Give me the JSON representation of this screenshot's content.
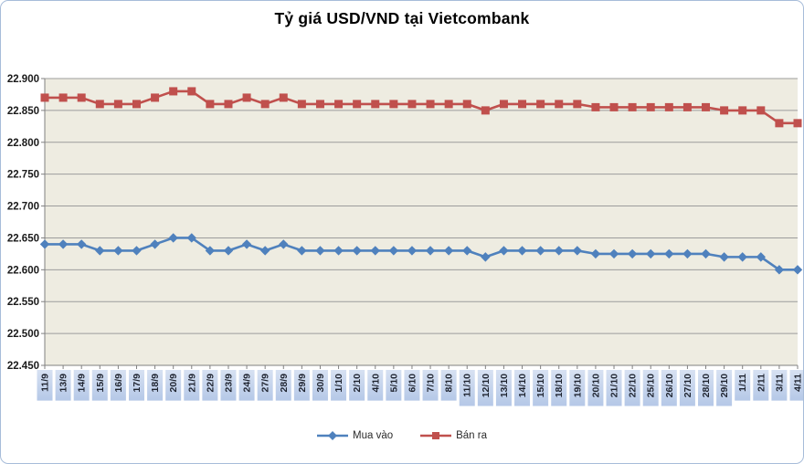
{
  "title": "Tỷ giá USD/VND tại Vietcombank",
  "colors": {
    "buy_series": "#4F81BD",
    "sell_series": "#C0504D",
    "plot_bg": "#EEECE1",
    "gridline": "#9C9C9C",
    "axis_line": "#808080",
    "frame_border": "#A7BCD9",
    "xlabel_bg_top": "#D7E1F2",
    "xlabel_bg_bottom": "#B5C8E7",
    "xlabel_text": "#1f2430",
    "ylabel_text": "#1a1a1a"
  },
  "chart_data": {
    "type": "line",
    "title": "Tỷ giá USD/VND tại Vietcombank",
    "xlabel": "",
    "ylabel": "",
    "ylim": [
      22.45,
      22.9
    ],
    "ytick_step": 0.05,
    "ytick_labels": [
      "22.450",
      "22.500",
      "22.550",
      "22.600",
      "22.650",
      "22.700",
      "22.750",
      "22.800",
      "22.850",
      "22.900"
    ],
    "grid": true,
    "legend_position": "bottom",
    "categories": [
      "11/9",
      "13/9",
      "14/9",
      "15/9",
      "16/9",
      "17/9",
      "18/9",
      "20/9",
      "21/9",
      "22/9",
      "23/9",
      "24/9",
      "27/9",
      "28/9",
      "29/9",
      "30/9",
      "1/10",
      "2/10",
      "4/10",
      "5/10",
      "6/10",
      "7/10",
      "8/10",
      "11/10",
      "12/10",
      "13/10",
      "14/10",
      "15/10",
      "18/10",
      "19/10",
      "20/10",
      "21/10",
      "22/10",
      "25/10",
      "26/10",
      "27/10",
      "28/10",
      "29/10",
      "1/11",
      "2/11",
      "3/11",
      "4/11"
    ],
    "series": [
      {
        "name": "Mua vào",
        "marker": "diamond",
        "color": "#4F81BD",
        "values": [
          22.64,
          22.64,
          22.64,
          22.63,
          22.63,
          22.63,
          22.64,
          22.65,
          22.65,
          22.63,
          22.63,
          22.64,
          22.63,
          22.64,
          22.63,
          22.63,
          22.63,
          22.63,
          22.63,
          22.63,
          22.63,
          22.63,
          22.63,
          22.63,
          22.62,
          22.63,
          22.63,
          22.63,
          22.63,
          22.63,
          22.625,
          22.625,
          22.625,
          22.625,
          22.625,
          22.625,
          22.625,
          22.62,
          22.62,
          22.62,
          22.6,
          22.6
        ]
      },
      {
        "name": "Bán ra",
        "marker": "square",
        "color": "#C0504D",
        "values": [
          22.87,
          22.87,
          22.87,
          22.86,
          22.86,
          22.86,
          22.87,
          22.88,
          22.88,
          22.86,
          22.86,
          22.87,
          22.86,
          22.87,
          22.86,
          22.86,
          22.86,
          22.86,
          22.86,
          22.86,
          22.86,
          22.86,
          22.86,
          22.86,
          22.85,
          22.86,
          22.86,
          22.86,
          22.86,
          22.86,
          22.855,
          22.855,
          22.855,
          22.855,
          22.855,
          22.855,
          22.855,
          22.85,
          22.85,
          22.85,
          22.83,
          22.83
        ]
      }
    ]
  },
  "legend": {
    "items": [
      {
        "label": "Mua vào"
      },
      {
        "label": "Bán ra"
      }
    ]
  }
}
